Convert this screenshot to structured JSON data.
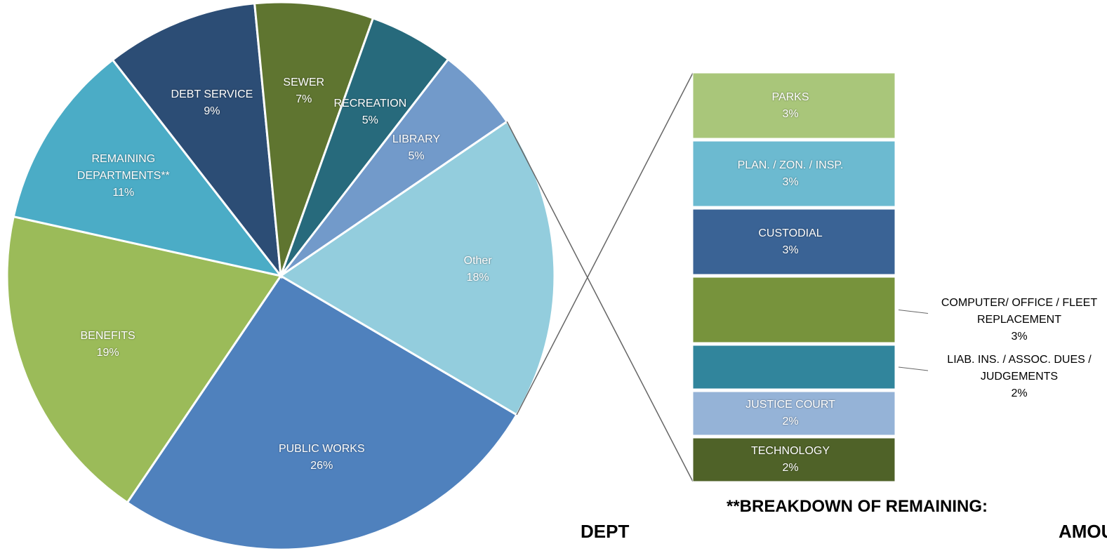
{
  "chart_data": {
    "type": "pie",
    "categories": [
      "PUBLIC WORKS",
      "BENEFITS",
      "REMAINING DEPARTMENTS**",
      "DEBT SERVICE",
      "SEWER",
      "RECREATION",
      "LIBRARY",
      "Other"
    ],
    "values": [
      26,
      19,
      11,
      9,
      7,
      5,
      5,
      18
    ],
    "value_labels": [
      "26%",
      "19%",
      "11%",
      "9%",
      "7%",
      "5%",
      "5%",
      "18%"
    ],
    "colors": [
      "#4f81bd",
      "#9bbb59",
      "#4bacc6",
      "#2c4d75",
      "#5f7530",
      "#276a7c",
      "#729aca",
      "#93cddd"
    ],
    "breakdown": {
      "categories": [
        "PARKS",
        "PLAN. / ZON. / INSP.",
        "CUSTODIAL",
        "COMPUTER/ OFFICE / FLEET REPLACEMENT",
        "LIAB. INS. / ASSOC. DUES / JUDGEMENTS",
        "JUSTICE COURT",
        "TECHNOLOGY"
      ],
      "values": [
        3,
        3,
        3,
        3,
        2,
        2,
        2
      ],
      "value_labels": [
        "3%",
        "3%",
        "3%",
        "3%",
        "2%",
        "2%",
        "2%"
      ],
      "colors": [
        "#a9c67a",
        "#6cbad0",
        "#3a6395",
        "#77933c",
        "#31859c",
        "#95b3d7",
        "#4f6228"
      ]
    },
    "annotations": [
      "**BREAKDOWN OF REMAINING:",
      "DEPT",
      "AMOUNT"
    ]
  }
}
